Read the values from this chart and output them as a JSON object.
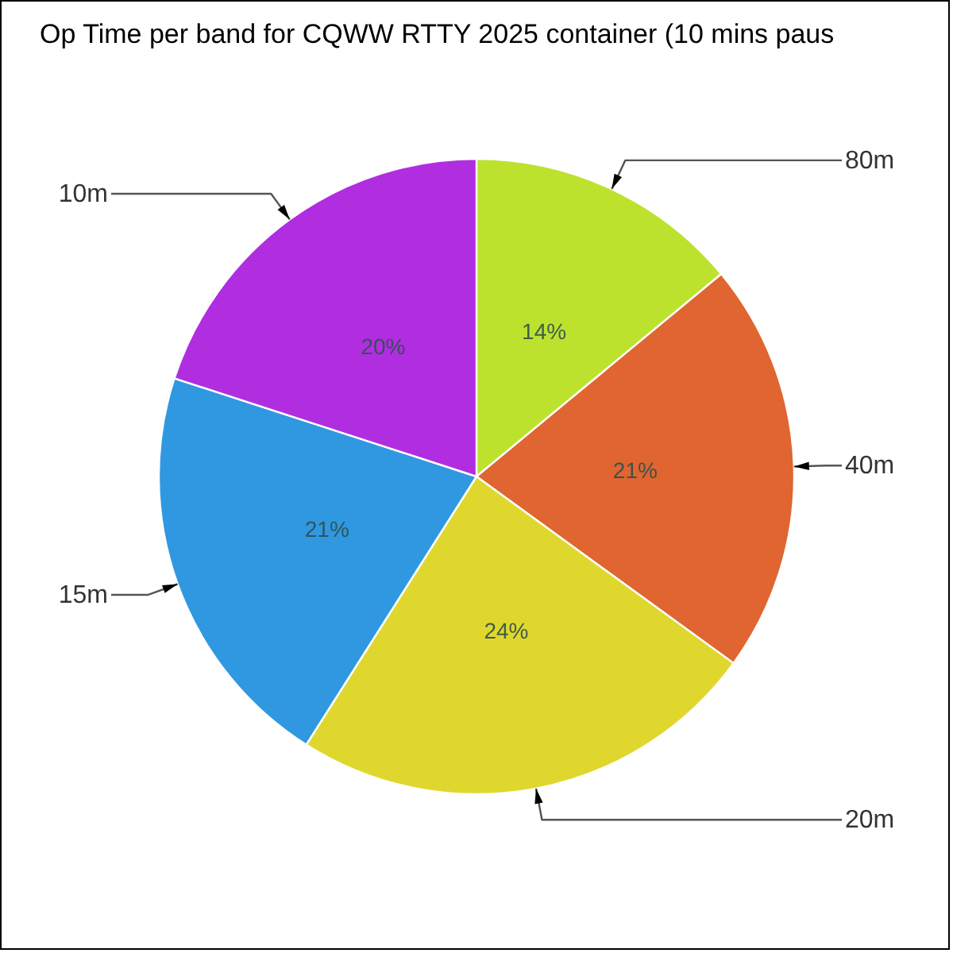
{
  "chart_data": {
    "type": "pie",
    "title": "Op Time per band for CQWW RTTY 2025 container (10 mins paus",
    "categories": [
      "80m",
      "40m",
      "20m",
      "15m",
      "10m"
    ],
    "values": [
      14,
      21,
      24,
      21,
      20
    ],
    "value_labels": [
      "14%",
      "21%",
      "24%",
      "21%",
      "20%"
    ],
    "colors": [
      "#bde22e",
      "#e06530",
      "#e0d72e",
      "#3098e0",
      "#b02ee0"
    ]
  }
}
